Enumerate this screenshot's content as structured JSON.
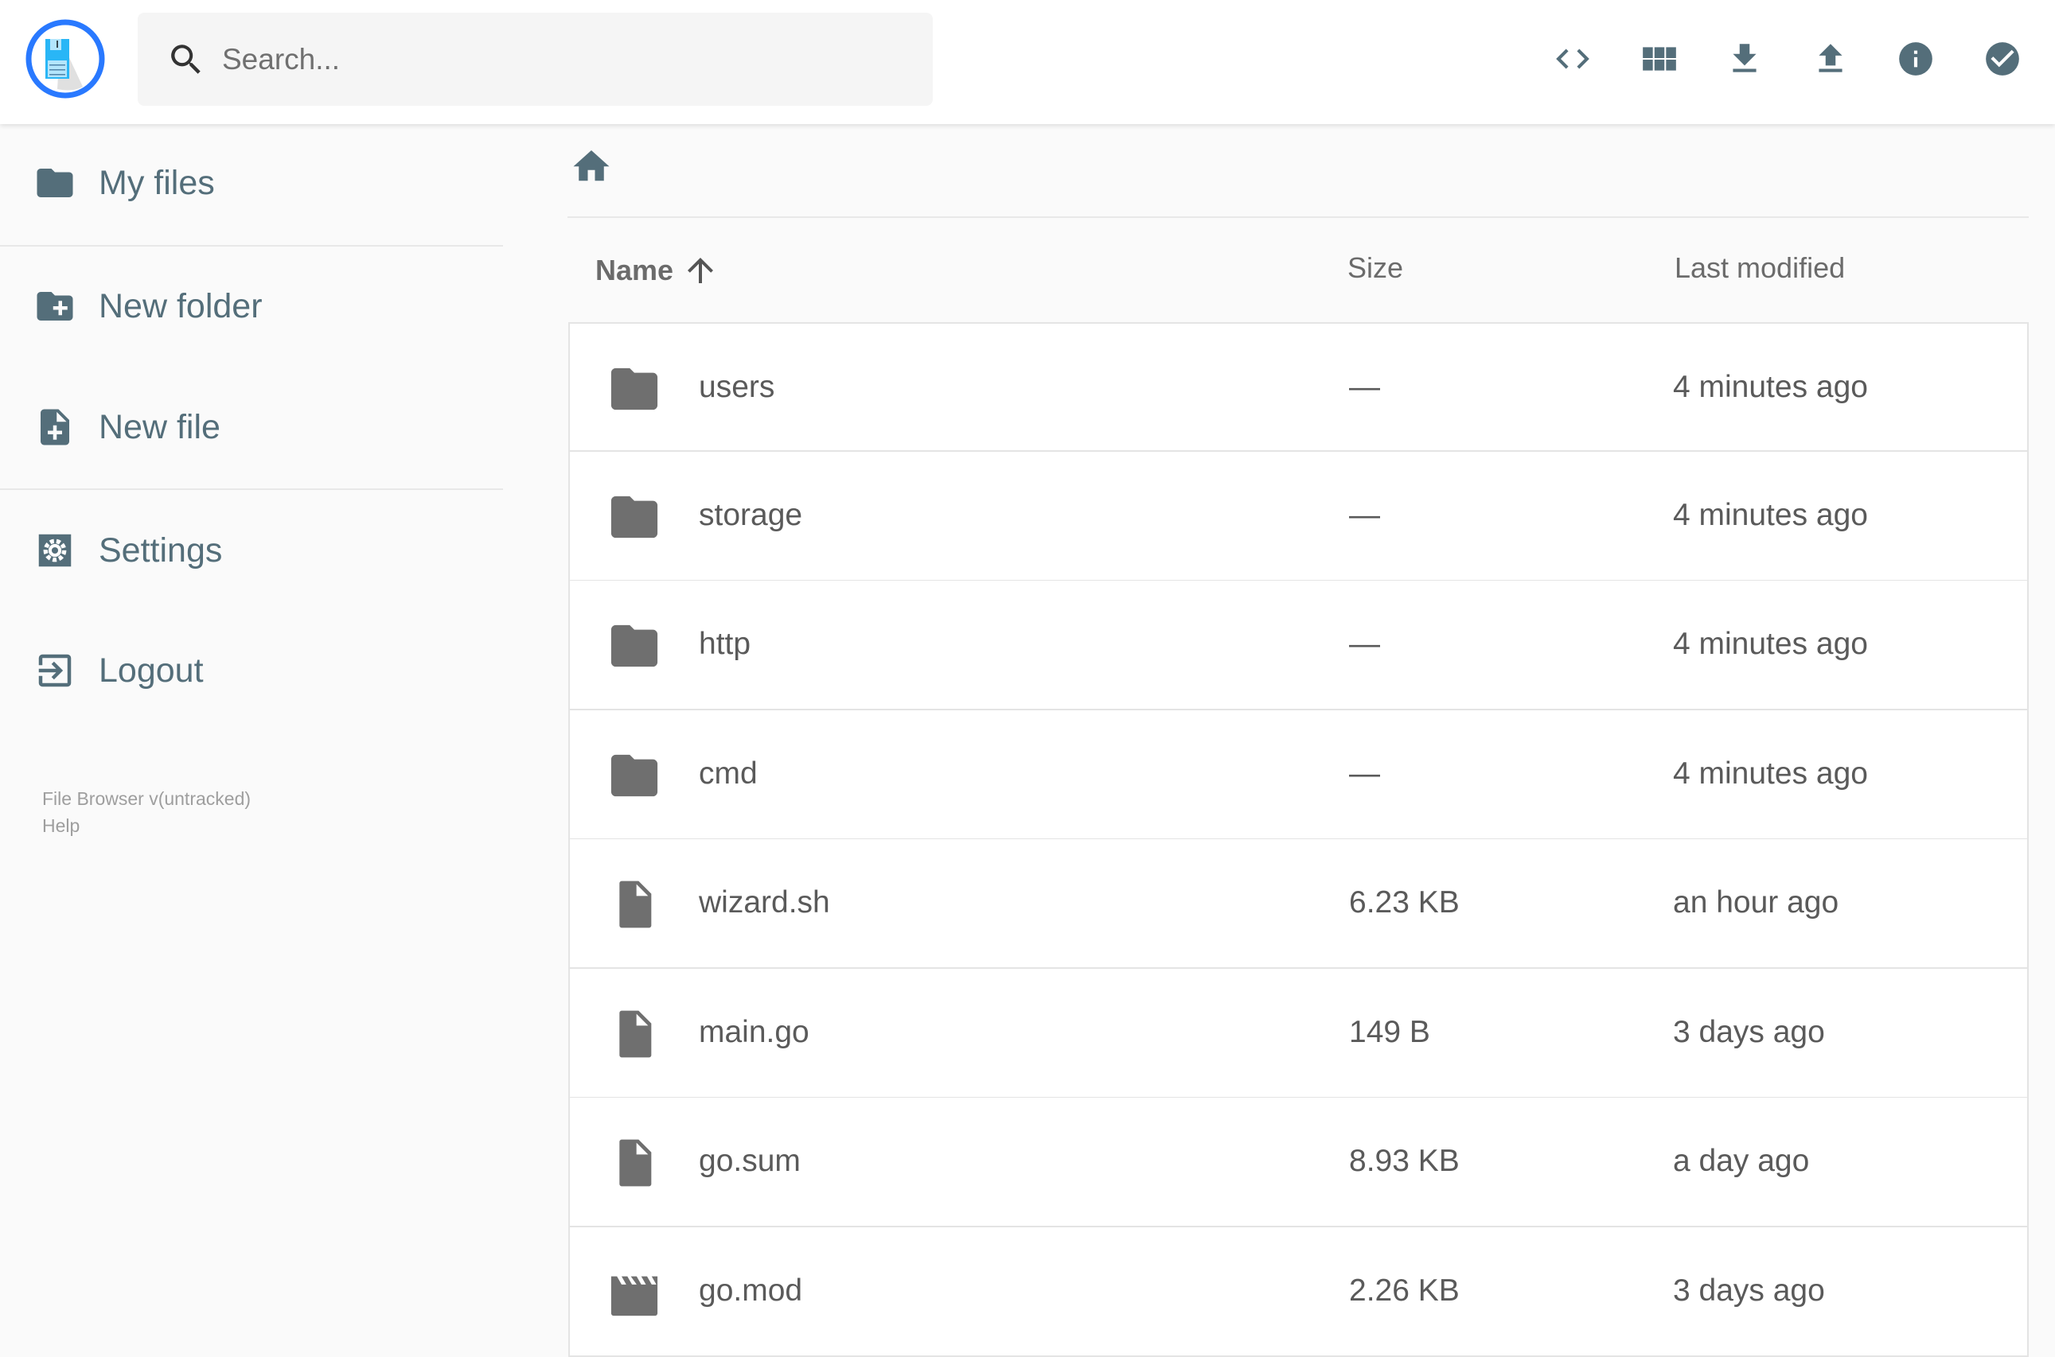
{
  "header": {
    "search_placeholder": "Search...",
    "toolbar": [
      {
        "name": "code-view-icon"
      },
      {
        "name": "grid-view-icon"
      },
      {
        "name": "download-icon"
      },
      {
        "name": "upload-icon"
      },
      {
        "name": "info-icon"
      },
      {
        "name": "select-check-icon"
      }
    ]
  },
  "sidebar": {
    "items": [
      {
        "label": "My files",
        "icon": "folder-icon"
      },
      {
        "label": "New folder",
        "icon": "folder-plus-icon"
      },
      {
        "label": "New file",
        "icon": "file-plus-icon"
      },
      {
        "label": "Settings",
        "icon": "gear-icon"
      },
      {
        "label": "Logout",
        "icon": "logout-icon"
      }
    ],
    "footer": {
      "version": "File Browser v(untracked)",
      "help": "Help"
    }
  },
  "listing": {
    "columns": {
      "name": "Name",
      "size": "Size",
      "modified": "Last modified"
    },
    "sort": "name-ascending",
    "rows": [
      {
        "name": "users",
        "size": "—",
        "modified": "4 minutes ago",
        "type": "folder"
      },
      {
        "name": "storage",
        "size": "—",
        "modified": "4 minutes ago",
        "type": "folder"
      },
      {
        "name": "http",
        "size": "—",
        "modified": "4 minutes ago",
        "type": "folder"
      },
      {
        "name": "cmd",
        "size": "—",
        "modified": "4 minutes ago",
        "type": "folder"
      },
      {
        "name": "wizard.sh",
        "size": "6.23 KB",
        "modified": "an hour ago",
        "type": "file"
      },
      {
        "name": "main.go",
        "size": "149 B",
        "modified": "3 days ago",
        "type": "file"
      },
      {
        "name": "go.sum",
        "size": "8.93 KB",
        "modified": "a day ago",
        "type": "file"
      },
      {
        "name": "go.mod",
        "size": "2.26 KB",
        "modified": "3 days ago",
        "type": "video"
      }
    ]
  },
  "colors": {
    "accent": "#2979ff",
    "icon": "#546e7a",
    "file_icon": "#6f6f6f"
  }
}
